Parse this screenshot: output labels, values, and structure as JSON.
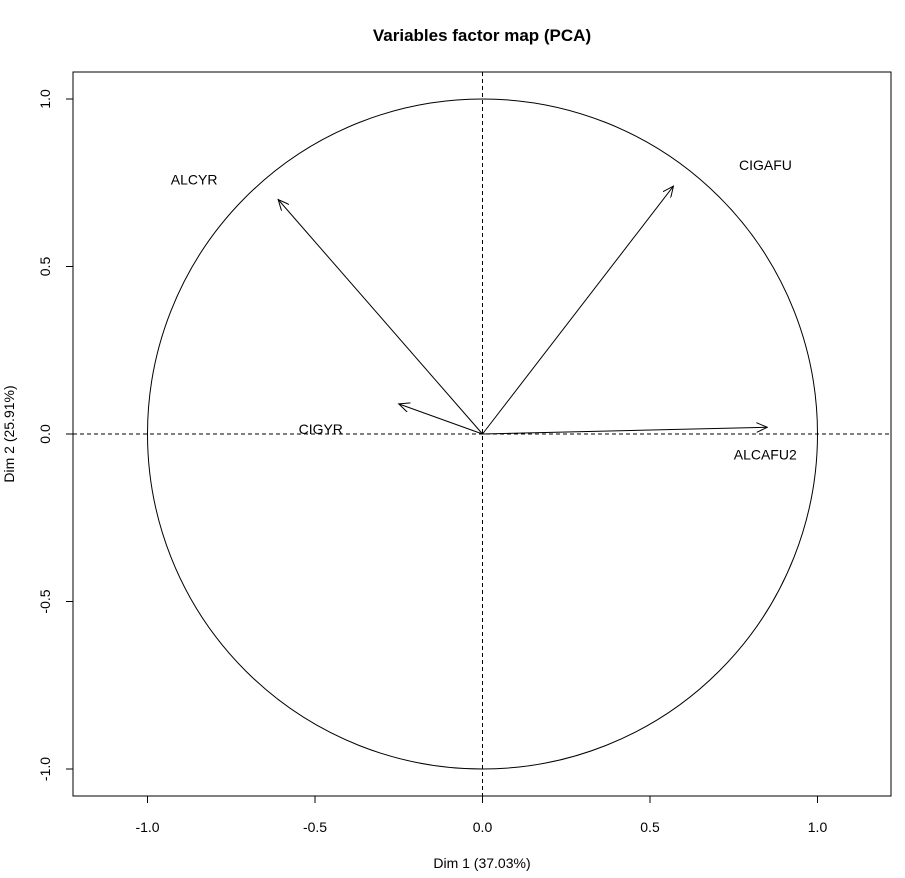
{
  "chart_data": {
    "type": "scatter",
    "title": "Variables factor map (PCA)",
    "xlabel": "Dim 1 (37.03%)",
    "ylabel": "Dim 2 (25.91%)",
    "xlim": [
      -1.2,
      1.2
    ],
    "ylim": [
      -1.08,
      1.08
    ],
    "xticks": [
      "-1.0",
      "-0.5",
      "0.0",
      "0.5",
      "1.0"
    ],
    "yticks": [
      "-1.0",
      "-0.5",
      "0.0",
      "0.5",
      "1.0"
    ],
    "xtick_values": [
      -1.0,
      -0.5,
      0.0,
      0.5,
      1.0
    ],
    "ytick_values": [
      -1.0,
      -0.5,
      0.0,
      0.5,
      1.0
    ],
    "unit_circle": true,
    "reference_lines": [
      0,
      0
    ],
    "grid": false,
    "variables": [
      {
        "name": "ALCYR",
        "x": -0.61,
        "y": 0.7
      },
      {
        "name": "CIGAFU",
        "x": 0.57,
        "y": 0.74
      },
      {
        "name": "CIGYR",
        "x": -0.25,
        "y": 0.09
      },
      {
        "name": "ALCAFU2",
        "x": 0.85,
        "y": 0.02
      }
    ]
  }
}
